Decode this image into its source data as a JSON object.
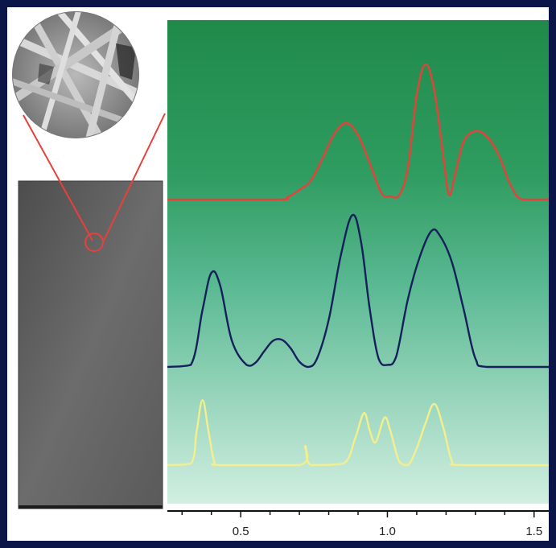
{
  "chart_data": {
    "type": "line",
    "title": "",
    "xlabel": "",
    "ylabel": "",
    "xlim": [
      0.25,
      1.55
    ],
    "x_ticks": [
      0.5,
      1.0,
      1.5
    ],
    "x_tick_labels": [
      "0.5",
      "1.0",
      "1.5"
    ],
    "grid": false,
    "series": [
      {
        "color": "#e8403a",
        "x": [
          0.25,
          0.62,
          0.66,
          0.7,
          0.74,
          0.78,
          0.82,
          0.86,
          0.9,
          0.94,
          0.98,
          1.01,
          1.04,
          1.07,
          1.1,
          1.13,
          1.16,
          1.19,
          1.21,
          1.23,
          1.26,
          1.3,
          1.34,
          1.38,
          1.42,
          1.46,
          1.55
        ],
        "values": [
          0.0,
          0.0,
          0.03,
          0.12,
          0.24,
          0.52,
          0.82,
          0.95,
          0.8,
          0.45,
          0.08,
          0.04,
          0.05,
          0.4,
          1.3,
          1.68,
          1.35,
          0.55,
          0.06,
          0.3,
          0.72,
          0.85,
          0.78,
          0.55,
          0.18,
          0.0,
          0.0
        ]
      },
      {
        "color": "#15205a",
        "x": [
          0.25,
          0.33,
          0.37,
          0.4,
          0.43,
          0.47,
          0.52,
          0.55,
          0.58,
          0.61,
          0.64,
          0.67,
          0.7,
          0.73,
          0.76,
          0.8,
          0.84,
          0.88,
          0.91,
          0.94,
          0.97,
          1.0,
          1.03,
          1.07,
          1.11,
          1.15,
          1.18,
          1.22,
          1.26,
          1.3,
          1.34,
          1.55
        ],
        "values": [
          0.0,
          0.02,
          0.55,
          0.9,
          0.78,
          0.25,
          0.02,
          0.04,
          0.15,
          0.25,
          0.26,
          0.18,
          0.05,
          0.0,
          0.08,
          0.45,
          1.05,
          1.45,
          1.2,
          0.55,
          0.08,
          0.02,
          0.1,
          0.65,
          1.05,
          1.3,
          1.25,
          1.0,
          0.55,
          0.08,
          0.0,
          0.0
        ]
      },
      {
        "color": "#f4ef8e",
        "x": [
          0.25,
          0.33,
          0.35,
          0.37,
          0.39,
          0.41,
          0.43,
          0.7,
          0.72,
          0.74,
          0.85,
          0.89,
          0.92,
          0.94,
          0.96,
          0.99,
          1.01,
          1.04,
          1.07,
          1.1,
          1.13,
          1.16,
          1.19,
          1.22,
          1.25,
          1.55
        ],
        "values": [
          0.0,
          0.02,
          0.45,
          0.85,
          0.45,
          0.04,
          0.0,
          0.0,
          0.25,
          0.0,
          0.02,
          0.35,
          0.68,
          0.45,
          0.3,
          0.62,
          0.45,
          0.05,
          0.0,
          0.22,
          0.55,
          0.8,
          0.5,
          0.05,
          0.0,
          0.0
        ]
      }
    ]
  },
  "colors": {
    "frame": "#0c1548",
    "gradient_top": "#1f8a4a",
    "gradient_mid": "#4db388",
    "gradient_bottom": "#cfeee0",
    "zoom_outline": "#e8403a"
  },
  "images": {
    "sem_inset": "circular-sem-micrograph",
    "sample_photo": "grey-fiber-mat-sample"
  }
}
